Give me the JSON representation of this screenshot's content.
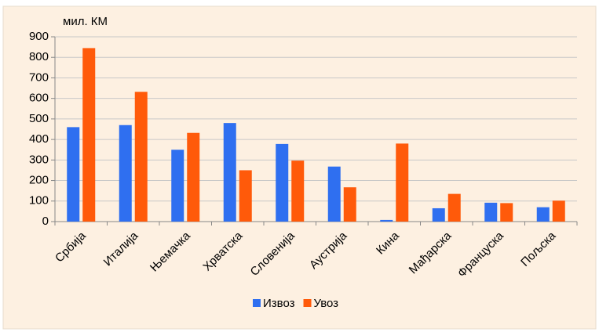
{
  "chart_data": {
    "type": "bar",
    "y_axis_label": "мил. КМ",
    "categories": [
      "Србија",
      "Италија",
      "Њемачка",
      "Хрватска",
      "Словенија",
      "Аустрија",
      "Кина",
      "Мађарска",
      "Француска",
      "Пољска"
    ],
    "series": [
      {
        "name": "Извоз",
        "color": "#2f6ff0",
        "values": [
          460,
          470,
          350,
          480,
          378,
          268,
          8,
          65,
          92,
          70
        ]
      },
      {
        "name": "Увоз",
        "color": "#ff5a0a",
        "values": [
          845,
          632,
          432,
          250,
          297,
          167,
          380,
          135,
          90,
          102
        ]
      }
    ],
    "ylim": [
      0,
      900
    ],
    "yticks": [
      0,
      100,
      200,
      300,
      400,
      500,
      600,
      700,
      800,
      900
    ],
    "grid": true,
    "legend": "bottom"
  }
}
